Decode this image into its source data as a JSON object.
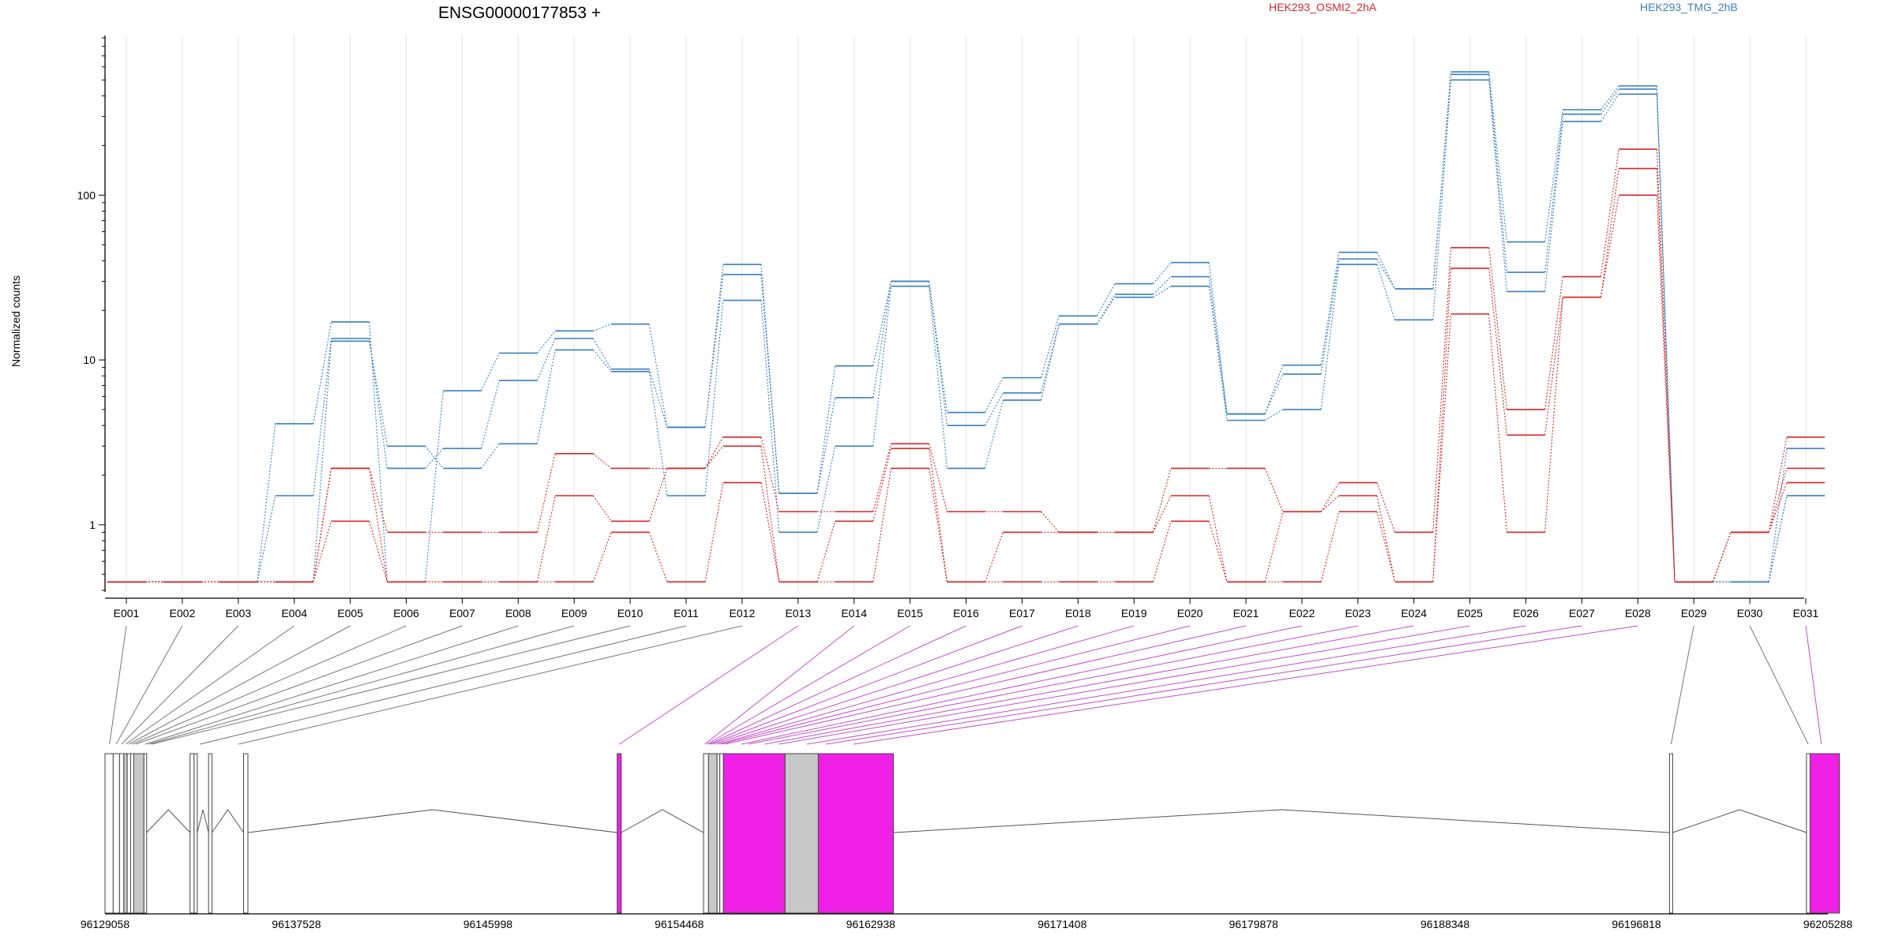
{
  "title": "ENSG00000177853 +",
  "chart_data": {
    "type": "line",
    "ylabel": "Normalized counts",
    "yscale": "log",
    "ylim": [
      0.4,
      900
    ],
    "yticks": [
      "1",
      "10",
      "100"
    ],
    "categories": [
      "E001",
      "E002",
      "E003",
      "E004",
      "E005",
      "E006",
      "E007",
      "E008",
      "E009",
      "E010",
      "E011",
      "E012",
      "E013",
      "E014",
      "E015",
      "E016",
      "E017",
      "E018",
      "E019",
      "E020",
      "E021",
      "E022",
      "E023",
      "E024",
      "E025",
      "E026",
      "E027",
      "E028",
      "E029",
      "E030",
      "E031"
    ],
    "legend": [
      {
        "name": "HEK293_OSMI2_2hA",
        "color": "#d62728"
      },
      {
        "name": "HEK293_TMG_2hB",
        "color": "#3a7fbf"
      }
    ],
    "series": [
      {
        "group": "HEK293_TMG_2hB",
        "color": "#3a7fbf",
        "values": [
          0.45,
          0.45,
          0.45,
          4.1,
          17,
          0.45,
          6.5,
          11,
          15,
          16.5,
          3.9,
          38,
          1.55,
          9.2,
          30,
          4.8,
          7.8,
          18.5,
          29,
          39,
          4.7,
          9.3,
          45,
          27,
          560,
          52,
          330,
          460,
          0.45,
          0.45,
          2.9
        ]
      },
      {
        "group": "HEK293_TMG_2hB",
        "color": "#3a7fbf",
        "values": [
          0.45,
          0.45,
          0.45,
          1.5,
          13.5,
          2.2,
          2.9,
          7.5,
          13.5,
          8.8,
          3.9,
          33,
          1.55,
          5.9,
          30,
          4.0,
          6.3,
          16.5,
          25,
          32,
          4.7,
          8.2,
          41,
          27,
          540,
          34,
          310,
          440,
          0.45,
          0.45,
          1.5
        ]
      },
      {
        "group": "HEK293_TMG_2hB",
        "color": "#3a7fbf",
        "values": [
          0.45,
          0.45,
          0.45,
          0.45,
          13,
          3.0,
          2.2,
          3.1,
          11.5,
          8.5,
          1.5,
          23,
          0.9,
          3.0,
          28,
          2.2,
          5.7,
          16.5,
          24,
          28,
          4.3,
          5.0,
          38,
          17.5,
          500,
          26,
          280,
          410,
          0.45,
          0.45,
          1.5
        ]
      },
      {
        "group": "HEK293_OSMI2_2hA",
        "color": "#d62728",
        "values": [
          0.45,
          0.45,
          0.45,
          0.45,
          2.2,
          0.9,
          0.9,
          0.9,
          2.7,
          2.2,
          2.2,
          3.4,
          1.2,
          1.2,
          3.1,
          1.2,
          1.2,
          0.9,
          0.9,
          2.2,
          2.2,
          1.2,
          1.8,
          0.9,
          48,
          5.0,
          32,
          190,
          0.45,
          0.9,
          3.4
        ]
      },
      {
        "group": "HEK293_OSMI2_2hA",
        "color": "#d62728",
        "values": [
          0.45,
          0.45,
          0.45,
          0.45,
          2.2,
          0.45,
          0.45,
          0.45,
          1.5,
          1.05,
          2.2,
          3.0,
          0.45,
          1.05,
          2.9,
          0.45,
          0.9,
          0.9,
          0.9,
          1.5,
          0.45,
          1.2,
          1.5,
          0.45,
          36,
          3.5,
          24,
          145,
          0.45,
          0.9,
          2.2
        ]
      },
      {
        "group": "HEK293_OSMI2_2hA",
        "color": "#d62728",
        "values": [
          0.45,
          0.45,
          0.45,
          0.45,
          1.05,
          0.45,
          0.45,
          0.45,
          0.45,
          0.9,
          0.45,
          1.8,
          0.45,
          0.45,
          2.2,
          0.45,
          0.45,
          0.45,
          0.45,
          1.05,
          0.45,
          0.45,
          1.2,
          0.45,
          19,
          0.9,
          24,
          100,
          0.45,
          0.9,
          1.8
        ]
      }
    ],
    "gene_model": {
      "coordinate_labels": [
        "96129058",
        "96137528",
        "96145998",
        "96154468",
        "96162938",
        "96171408",
        "96179878",
        "96188348",
        "96196818",
        "96205288"
      ],
      "coordinate_range": [
        96129058,
        96205288
      ],
      "highlight_color": "#f01fe6",
      "exon_color": "#c8c8c8",
      "exons": [
        {
          "id": "E001",
          "start": 96129058,
          "end": 96129420,
          "fill": "white"
        },
        {
          "id": "E002",
          "start": 96129420,
          "end": 96129700,
          "fill": "white"
        },
        {
          "id": "E003",
          "start": 96129700,
          "end": 96129890,
          "fill": "white"
        },
        {
          "id": "E004",
          "start": 96129890,
          "end": 96130040,
          "fill": "gray"
        },
        {
          "id": "E005",
          "start": 96130040,
          "end": 96130190,
          "fill": "white"
        },
        {
          "id": "E006",
          "start": 96130190,
          "end": 96130330,
          "fill": "white"
        },
        {
          "id": "E007",
          "start": 96130330,
          "end": 96130780,
          "fill": "gray"
        },
        {
          "id": "E008",
          "start": 96130780,
          "end": 96130900,
          "fill": "white"
        },
        {
          "id": "E009",
          "start": 96132820,
          "end": 96133000,
          "fill": "white"
        },
        {
          "id": "E010",
          "start": 96133000,
          "end": 96133140,
          "fill": "white"
        },
        {
          "id": "E011",
          "start": 96133640,
          "end": 96133790,
          "fill": "white"
        },
        {
          "id": "E012",
          "start": 96135190,
          "end": 96135380,
          "fill": "white"
        },
        {
          "id": "E013",
          "start": 96151720,
          "end": 96151900,
          "fill": "highlight"
        },
        {
          "id": "E014",
          "start": 96155540,
          "end": 96155760,
          "fill": "white"
        },
        {
          "id": "E015",
          "start": 96155760,
          "end": 96156140,
          "fill": "gray"
        },
        {
          "id": "E016",
          "start": 96156140,
          "end": 96156260,
          "fill": "white"
        },
        {
          "id": "E017",
          "start": 96156260,
          "end": 96156420,
          "fill": "white"
        },
        {
          "id": "E018",
          "start": 96156420,
          "end": 96159150,
          "fill": "highlight"
        },
        {
          "id": "E019",
          "start": 96159150,
          "end": 96160620,
          "fill": "gray"
        },
        {
          "id": "E020",
          "start": 96160620,
          "end": 96163940,
          "fill": "highlight"
        },
        {
          "id": "E029",
          "start": 96198280,
          "end": 96198420,
          "fill": "white"
        },
        {
          "id": "E030",
          "start": 96204340,
          "end": 96204500,
          "fill": "white"
        },
        {
          "id": "E031",
          "start": 96204500,
          "end": 96205800,
          "fill": "highlight"
        }
      ],
      "connectors": [
        {
          "exon": "E001",
          "gx": 96129258,
          "highlight": false
        },
        {
          "exon": "E002",
          "gx": 96129550,
          "highlight": false
        },
        {
          "exon": "E003",
          "gx": 96129790,
          "highlight": false
        },
        {
          "exon": "E004",
          "gx": 96129970,
          "highlight": false
        },
        {
          "exon": "E005",
          "gx": 96130110,
          "highlight": false
        },
        {
          "exon": "E006",
          "gx": 96130260,
          "highlight": false
        },
        {
          "exon": "E007",
          "gx": 96130420,
          "highlight": false
        },
        {
          "exon": "E008",
          "gx": 96130840,
          "highlight": false
        },
        {
          "exon": "E009",
          "gx": 96131000,
          "highlight": false
        },
        {
          "exon": "E010",
          "gx": 96131120,
          "highlight": false
        },
        {
          "exon": "E011",
          "gx": 96133260,
          "highlight": false
        },
        {
          "exon": "E012",
          "gx": 96134970,
          "highlight": false
        },
        {
          "exon": "E013",
          "gx": 96151810,
          "highlight": true
        },
        {
          "exon": "E014",
          "gx": 96155600,
          "highlight": true
        },
        {
          "exon": "E015",
          "gx": 96155700,
          "highlight": true
        },
        {
          "exon": "E016",
          "gx": 96155780,
          "highlight": true
        },
        {
          "exon": "E017",
          "gx": 96155860,
          "highlight": true
        },
        {
          "exon": "E018",
          "gx": 96156000,
          "highlight": true
        },
        {
          "exon": "E019",
          "gx": 96156180,
          "highlight": true
        },
        {
          "exon": "E020",
          "gx": 96156300,
          "highlight": true
        },
        {
          "exon": "E021",
          "gx": 96156500,
          "highlight": true
        },
        {
          "exon": "E022",
          "gx": 96157220,
          "highlight": true
        },
        {
          "exon": "E023",
          "gx": 96157520,
          "highlight": true
        },
        {
          "exon": "E024",
          "gx": 96158240,
          "highlight": true
        },
        {
          "exon": "E025",
          "gx": 96158870,
          "highlight": true
        },
        {
          "exon": "E026",
          "gx": 96160110,
          "highlight": true
        },
        {
          "exon": "E027",
          "gx": 96160950,
          "highlight": true
        },
        {
          "exon": "E028",
          "gx": 96162180,
          "highlight": true
        },
        {
          "exon": "E029",
          "gx": 96198350,
          "highlight": false
        },
        {
          "exon": "E030",
          "gx": 96204420,
          "highlight": false
        },
        {
          "exon": "E031",
          "gx": 96205000,
          "highlight": true
        }
      ],
      "introns": [
        {
          "from": 96130900,
          "to": 96132820
        },
        {
          "from": 96133140,
          "to": 96133640
        },
        {
          "from": 96133790,
          "to": 96135190
        },
        {
          "from": 96135380,
          "to": 96151720
        },
        {
          "from": 96151900,
          "to": 96155540
        },
        {
          "from": 96163940,
          "to": 96198280
        },
        {
          "from": 96198420,
          "to": 96204340
        }
      ]
    }
  }
}
